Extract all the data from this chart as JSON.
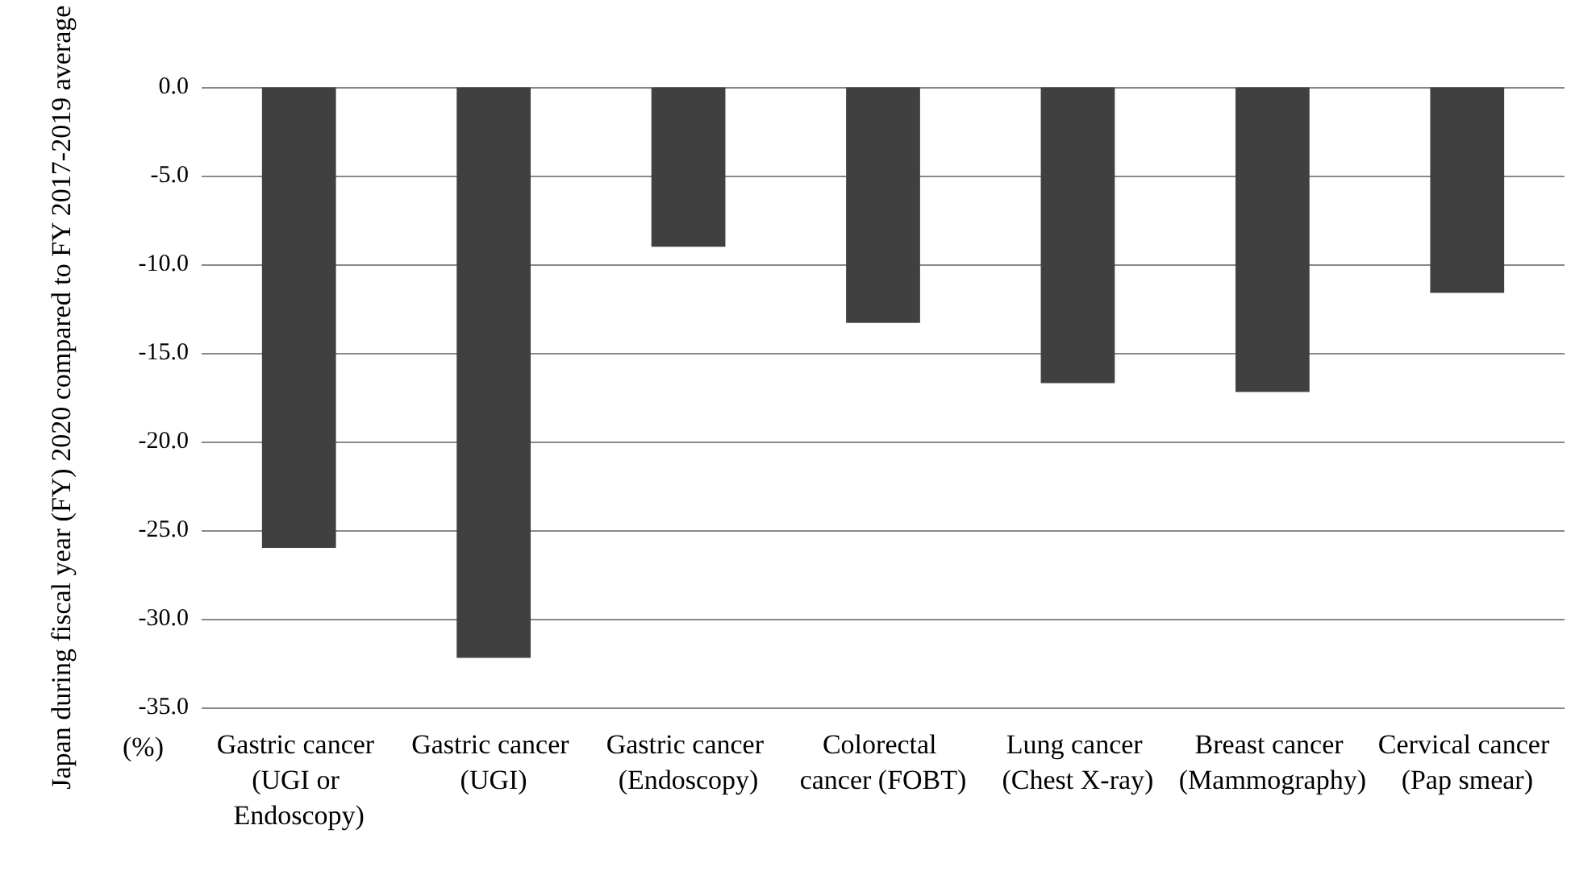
{
  "chart_data": {
    "type": "bar",
    "ylabel": "Japan during fiscal year (FY) 2020 compared to FY 2017-2019 average",
    "categories": [
      "Gastric cancer (UGI or Endoscopy)",
      "Gastric cancer (UGI)",
      "Gastric cancer (Endoscopy)",
      "Colorectal cancer (FOBT)",
      "Lung cancer (Chest X-ray)",
      "Breast cancer (Mammography)",
      "Cervical cancer (Pap smear)"
    ],
    "values": [
      -26.0,
      -32.2,
      -9.0,
      -13.3,
      -16.7,
      -17.2,
      -11.6
    ],
    "color": "#404040",
    "ylim": [
      -35,
      0
    ],
    "yticks": [
      {
        "value": -35,
        "label": "-35.0"
      },
      {
        "value": -30,
        "label": "-30.0"
      },
      {
        "value": -25,
        "label": "-25.0"
      },
      {
        "value": -20,
        "label": "-20.0"
      },
      {
        "value": -15,
        "label": "-15.0"
      },
      {
        "value": -10,
        "label": "-10.0"
      },
      {
        "value": -5,
        "label": "-5.0"
      },
      {
        "value": 0,
        "label": "0.0"
      }
    ],
    "grid": "y",
    "annotations": [
      "(%)"
    ]
  }
}
